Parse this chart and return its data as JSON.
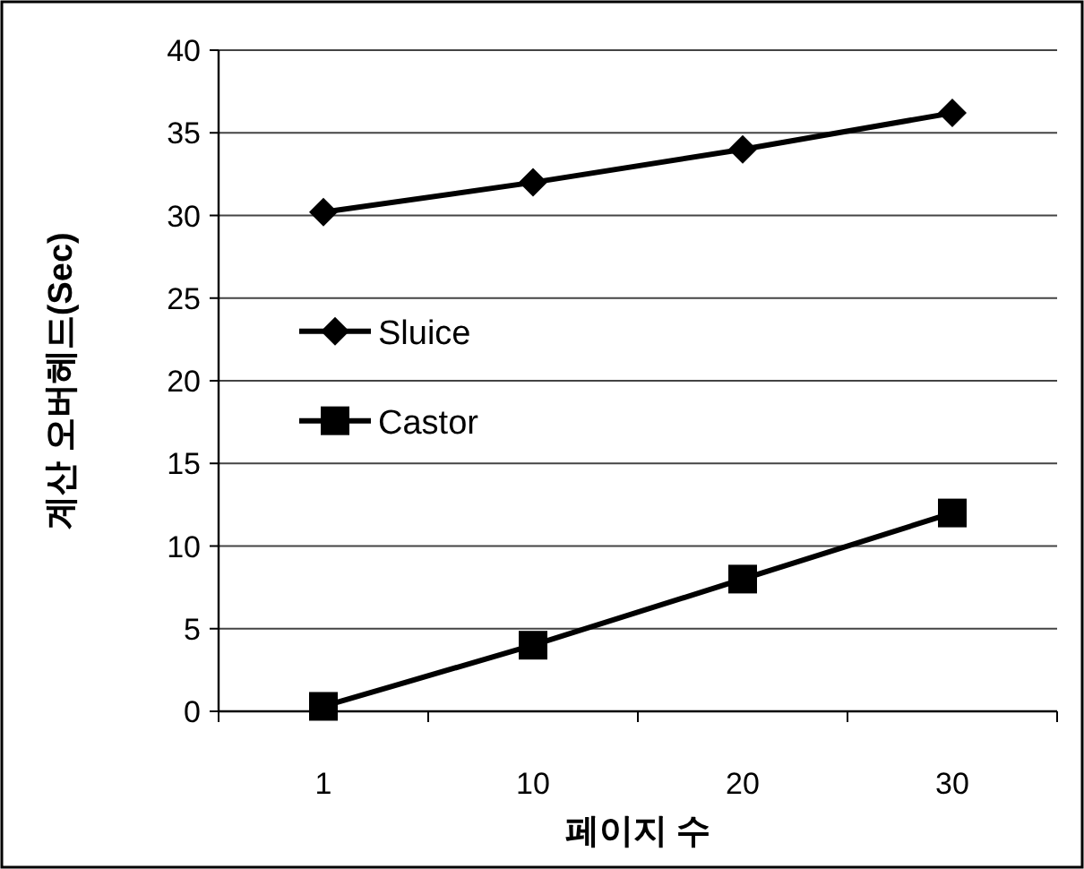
{
  "chart_data": {
    "type": "line",
    "xlabel": "페이지 수",
    "ylabel": "계산 오버헤드(Sec)",
    "categories": [
      "1",
      "10",
      "20",
      "30"
    ],
    "series": [
      {
        "name": "Sluice",
        "color": "#000000",
        "marker": "diamond",
        "values": [
          30.2,
          32,
          34,
          36.2
        ]
      },
      {
        "name": "Castor",
        "color": "#000000",
        "marker": "square",
        "values": [
          0.3,
          4,
          8,
          12
        ]
      }
    ],
    "ylim": [
      0,
      40
    ],
    "yticks": [
      0,
      5,
      10,
      15,
      20,
      25,
      30,
      35,
      40
    ],
    "grid": "y",
    "legend": "left",
    "line_style": "solid"
  }
}
